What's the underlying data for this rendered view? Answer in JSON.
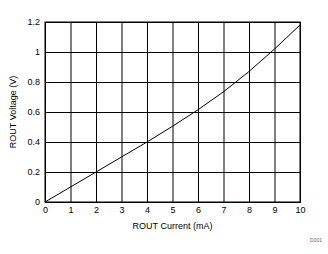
{
  "chart_data": {
    "type": "line",
    "x_label": "ROUT Current (mA)",
    "y_label": "ROUT Voltage (V)",
    "annotation": "D001",
    "x": [
      0,
      1,
      2,
      3,
      4,
      5,
      6,
      7,
      8,
      9,
      10
    ],
    "values": [
      0,
      0.1,
      0.2,
      0.3,
      0.4,
      0.505,
      0.615,
      0.735,
      0.87,
      1.02,
      1.18
    ],
    "color": "#000000",
    "xlim": [
      0,
      10
    ],
    "xticks": [
      0,
      1,
      2,
      3,
      4,
      5,
      6,
      7,
      8,
      9,
      10
    ],
    "ylim": [
      0,
      1.2
    ],
    "yticks": [
      0,
      0.2,
      0.4,
      0.6,
      0.8,
      1,
      1.2
    ],
    "grid": true
  }
}
